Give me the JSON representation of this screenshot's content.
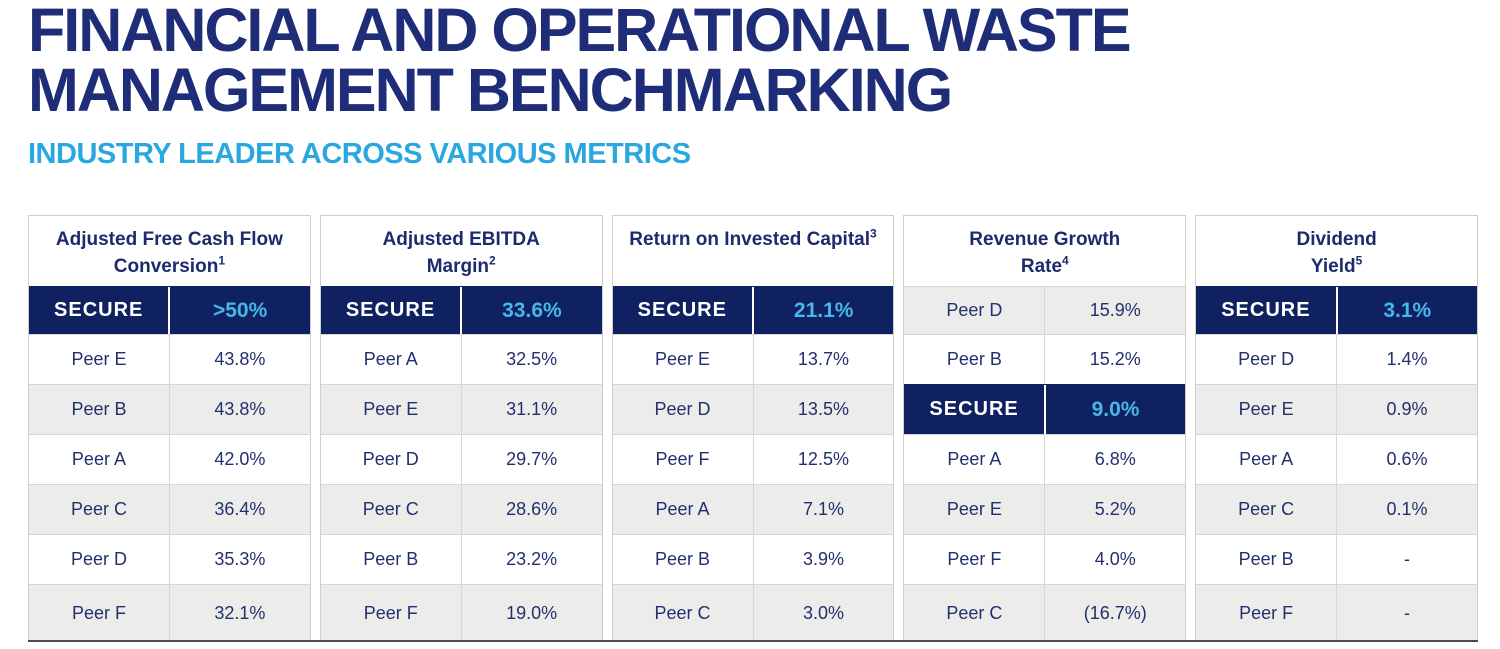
{
  "header": {
    "title_line1": "FINANCIAL AND OPERATIONAL WASTE",
    "title_line2": "MANAGEMENT BENCHMARKING",
    "subtitle": "INDUSTRY LEADER ACROSS VARIOUS METRICS"
  },
  "colors": {
    "navy": "#0f2161",
    "title_navy": "#1f2d78",
    "subtitle_blue": "#2ba7e0",
    "value_blue": "#47b7e9",
    "body_text": "#22306e",
    "header_text": "#1d2b6d",
    "row_alt": "#ececea",
    "border": "#cfcfca",
    "divider": "#d6d6d2",
    "bottom_border": "#4d4d45"
  },
  "table": {
    "columns": [
      {
        "id": "adjusted-free-cash-flow-conversion",
        "header_lines": [
          {
            "text": "Adjusted Free Cash Flow"
          },
          {
            "text": "Conversion",
            "sup": "1"
          }
        ],
        "rows": [
          {
            "name": "SECURE",
            "value": ">50%",
            "highlight": true
          },
          {
            "name": "Peer E",
            "value": "43.8%"
          },
          {
            "name": "Peer B",
            "value": "43.8%"
          },
          {
            "name": "Peer A",
            "value": "42.0%"
          },
          {
            "name": "Peer C",
            "value": "36.4%"
          },
          {
            "name": "Peer D",
            "value": "35.3%"
          },
          {
            "name": "Peer F",
            "value": "32.1%"
          }
        ]
      },
      {
        "id": "adjusted-ebitda-margin",
        "header_lines": [
          {
            "text": "Adjusted EBITDA"
          },
          {
            "text": "Margin",
            "sup": "2"
          }
        ],
        "rows": [
          {
            "name": "SECURE",
            "value": "33.6%",
            "highlight": true
          },
          {
            "name": "Peer A",
            "value": "32.5%"
          },
          {
            "name": "Peer E",
            "value": "31.1%"
          },
          {
            "name": "Peer D",
            "value": "29.7%"
          },
          {
            "name": "Peer C",
            "value": "28.6%"
          },
          {
            "name": "Peer B",
            "value": "23.2%"
          },
          {
            "name": "Peer F",
            "value": "19.0%"
          }
        ]
      },
      {
        "id": "return-on-invested-capital",
        "header_lines": [
          {
            "text": "Return on Invested Capital",
            "sup": "3"
          }
        ],
        "rows": [
          {
            "name": "SECURE",
            "value": "21.1%",
            "highlight": true
          },
          {
            "name": "Peer E",
            "value": "13.7%"
          },
          {
            "name": "Peer D",
            "value": "13.5%"
          },
          {
            "name": "Peer F",
            "value": "12.5%"
          },
          {
            "name": "Peer A",
            "value": "7.1%"
          },
          {
            "name": "Peer B",
            "value": "3.9%"
          },
          {
            "name": "Peer C",
            "value": "3.0%"
          }
        ]
      },
      {
        "id": "revenue-growth-rate",
        "header_lines": [
          {
            "text": "Revenue Growth"
          },
          {
            "text": "Rate",
            "sup": "4"
          }
        ],
        "rows": [
          {
            "name": "Peer D",
            "value": "15.9%"
          },
          {
            "name": "Peer B",
            "value": "15.2%"
          },
          {
            "name": "SECURE",
            "value": "9.0%",
            "highlight": true
          },
          {
            "name": "Peer A",
            "value": "6.8%"
          },
          {
            "name": "Peer E",
            "value": "5.2%"
          },
          {
            "name": "Peer F",
            "value": "4.0%"
          },
          {
            "name": "Peer C",
            "value": "(16.7%)"
          }
        ]
      },
      {
        "id": "dividend-yield",
        "header_lines": [
          {
            "text": "Dividend"
          },
          {
            "text": "Yield",
            "sup": "5"
          }
        ],
        "rows": [
          {
            "name": "SECURE",
            "value": "3.1%",
            "highlight": true
          },
          {
            "name": "Peer D",
            "value": "1.4%"
          },
          {
            "name": "Peer E",
            "value": "0.9%"
          },
          {
            "name": "Peer A",
            "value": "0.6%"
          },
          {
            "name": "Peer C",
            "value": "0.1%"
          },
          {
            "name": "Peer B",
            "value": "-"
          },
          {
            "name": "Peer F",
            "value": "-"
          }
        ]
      }
    ]
  }
}
